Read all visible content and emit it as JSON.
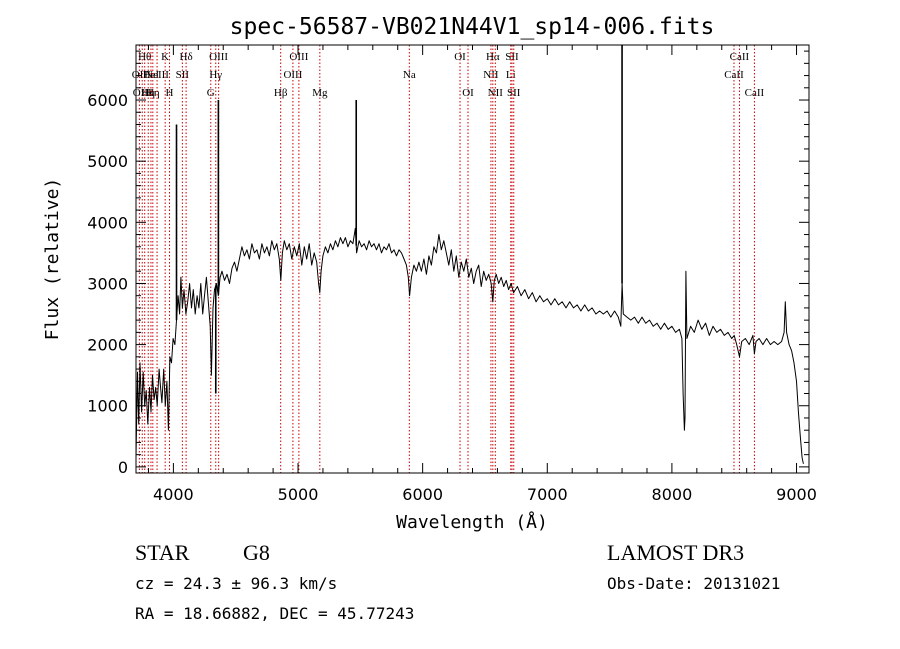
{
  "chart_data": {
    "type": "line",
    "title": "spec-56587-VB021N44V1_sp14-006.fits",
    "xlabel": "Wavelength (Å)",
    "ylabel": "Flux (relative)",
    "xlim": [
      3700,
      9100
    ],
    "ylim": [
      -100,
      6900
    ],
    "xticks": [
      4000,
      5000,
      6000,
      7000,
      8000,
      9000
    ],
    "yticks": [
      0,
      1000,
      2000,
      3000,
      4000,
      5000,
      6000
    ],
    "grid": false,
    "line_color": "#000000",
    "marker_color": "#cc0000",
    "series": [
      {
        "points": [
          [
            3700,
            150
          ],
          [
            3712,
            1550
          ],
          [
            3722,
            700
          ],
          [
            3732,
            1700
          ],
          [
            3745,
            900
          ],
          [
            3758,
            1550
          ],
          [
            3770,
            1000
          ],
          [
            3782,
            1250
          ],
          [
            3795,
            700
          ],
          [
            3808,
            1300
          ],
          [
            3820,
            900
          ],
          [
            3832,
            1500
          ],
          [
            3845,
            1100
          ],
          [
            3858,
            1300
          ],
          [
            3870,
            1000
          ],
          [
            3885,
            1600
          ],
          [
            3895,
            1350
          ],
          [
            3908,
            1050
          ],
          [
            3922,
            1600
          ],
          [
            3935,
            1000
          ],
          [
            3948,
            1400
          ],
          [
            3960,
            600
          ],
          [
            3972,
            1800
          ],
          [
            3985,
            1700
          ],
          [
            3998,
            2100
          ],
          [
            4012,
            2000
          ],
          [
            4025,
            2400
          ],
          [
            4038,
            2800
          ],
          [
            4050,
            2500
          ],
          [
            4060,
            3100
          ],
          [
            4072,
            2600
          ],
          [
            4085,
            2900
          ],
          [
            4100,
            2500
          ],
          [
            4115,
            2700
          ],
          [
            4130,
            3000
          ],
          [
            4145,
            2600
          ],
          [
            4160,
            2900
          ],
          [
            4175,
            2500
          ],
          [
            4190,
            2800
          ],
          [
            4205,
            2600
          ],
          [
            4220,
            3000
          ],
          [
            4235,
            2500
          ],
          [
            4250,
            2800
          ],
          [
            4265,
            3100
          ],
          [
            4280,
            2700
          ],
          [
            4295,
            2300
          ],
          [
            4305,
            1500
          ],
          [
            4318,
            2600
          ],
          [
            4330,
            2900
          ],
          [
            4345,
            3000
          ],
          [
            4360,
            2800
          ],
          [
            4375,
            3100
          ],
          [
            4390,
            3200
          ],
          [
            4410,
            3050
          ],
          [
            4430,
            3150
          ],
          [
            4450,
            3000
          ],
          [
            4470,
            3250
          ],
          [
            4490,
            3350
          ],
          [
            4510,
            3200
          ],
          [
            4530,
            3400
          ],
          [
            4550,
            3600
          ],
          [
            4570,
            3450
          ],
          [
            4590,
            3550
          ],
          [
            4610,
            3400
          ],
          [
            4630,
            3650
          ],
          [
            4650,
            3500
          ],
          [
            4670,
            3550
          ],
          [
            4690,
            3400
          ],
          [
            4710,
            3650
          ],
          [
            4730,
            3500
          ],
          [
            4750,
            3600
          ],
          [
            4770,
            3450
          ],
          [
            4790,
            3700
          ],
          [
            4810,
            3550
          ],
          [
            4830,
            3650
          ],
          [
            4850,
            3400
          ],
          [
            4862,
            3050
          ],
          [
            4875,
            3500
          ],
          [
            4890,
            3700
          ],
          [
            4910,
            3550
          ],
          [
            4930,
            3650
          ],
          [
            4950,
            3400
          ],
          [
            4970,
            3600
          ],
          [
            4990,
            3450
          ],
          [
            5010,
            3650
          ],
          [
            5030,
            3300
          ],
          [
            5050,
            3600
          ],
          [
            5070,
            3400
          ],
          [
            5090,
            3650
          ],
          [
            5110,
            3300
          ],
          [
            5130,
            3500
          ],
          [
            5150,
            3350
          ],
          [
            5165,
            3000
          ],
          [
            5175,
            2850
          ],
          [
            5185,
            3200
          ],
          [
            5200,
            3450
          ],
          [
            5220,
            3600
          ],
          [
            5240,
            3500
          ],
          [
            5260,
            3650
          ],
          [
            5280,
            3550
          ],
          [
            5300,
            3700
          ],
          [
            5320,
            3600
          ],
          [
            5340,
            3750
          ],
          [
            5360,
            3650
          ],
          [
            5380,
            3750
          ],
          [
            5400,
            3600
          ],
          [
            5420,
            3700
          ],
          [
            5440,
            3650
          ],
          [
            5460,
            3900
          ],
          [
            5470,
            3500
          ],
          [
            5490,
            3700
          ],
          [
            5510,
            3600
          ],
          [
            5530,
            3650
          ],
          [
            5550,
            3550
          ],
          [
            5570,
            3700
          ],
          [
            5590,
            3600
          ],
          [
            5610,
            3650
          ],
          [
            5630,
            3550
          ],
          [
            5650,
            3650
          ],
          [
            5670,
            3500
          ],
          [
            5690,
            3600
          ],
          [
            5710,
            3550
          ],
          [
            5730,
            3650
          ],
          [
            5750,
            3500
          ],
          [
            5770,
            3550
          ],
          [
            5790,
            3450
          ],
          [
            5810,
            3550
          ],
          [
            5830,
            3500
          ],
          [
            5850,
            3400
          ],
          [
            5870,
            3300
          ],
          [
            5885,
            3100
          ],
          [
            5895,
            2800
          ],
          [
            5910,
            3100
          ],
          [
            5930,
            3300
          ],
          [
            5950,
            3200
          ],
          [
            5970,
            3350
          ],
          [
            5990,
            3200
          ],
          [
            6010,
            3400
          ],
          [
            6030,
            3150
          ],
          [
            6050,
            3450
          ],
          [
            6070,
            3300
          ],
          [
            6090,
            3600
          ],
          [
            6110,
            3500
          ],
          [
            6130,
            3800
          ],
          [
            6150,
            3550
          ],
          [
            6170,
            3700
          ],
          [
            6190,
            3500
          ],
          [
            6210,
            3300
          ],
          [
            6230,
            3550
          ],
          [
            6250,
            3200
          ],
          [
            6270,
            3450
          ],
          [
            6290,
            3100
          ],
          [
            6310,
            3350
          ],
          [
            6330,
            3200
          ],
          [
            6350,
            3400
          ],
          [
            6370,
            3100
          ],
          [
            6390,
            3250
          ],
          [
            6410,
            3000
          ],
          [
            6430,
            3200
          ],
          [
            6450,
            3300
          ],
          [
            6470,
            2950
          ],
          [
            6490,
            3200
          ],
          [
            6510,
            3050
          ],
          [
            6530,
            3150
          ],
          [
            6550,
            3000
          ],
          [
            6563,
            2700
          ],
          [
            6575,
            3050
          ],
          [
            6590,
            3150
          ],
          [
            6610,
            3000
          ],
          [
            6630,
            3100
          ],
          [
            6650,
            2950
          ],
          [
            6670,
            3050
          ],
          [
            6690,
            2900
          ],
          [
            6710,
            3000
          ],
          [
            6730,
            2850
          ],
          [
            6760,
            2950
          ],
          [
            6790,
            2800
          ],
          [
            6820,
            2900
          ],
          [
            6850,
            2750
          ],
          [
            6880,
            2850
          ],
          [
            6910,
            2700
          ],
          [
            6940,
            2800
          ],
          [
            6970,
            2700
          ],
          [
            7000,
            2750
          ],
          [
            7030,
            2650
          ],
          [
            7060,
            2750
          ],
          [
            7090,
            2650
          ],
          [
            7120,
            2700
          ],
          [
            7150,
            2600
          ],
          [
            7180,
            2700
          ],
          [
            7210,
            2600
          ],
          [
            7240,
            2650
          ],
          [
            7270,
            2550
          ],
          [
            7300,
            2650
          ],
          [
            7330,
            2550
          ],
          [
            7360,
            2600
          ],
          [
            7390,
            2500
          ],
          [
            7420,
            2550
          ],
          [
            7450,
            2500
          ],
          [
            7480,
            2550
          ],
          [
            7510,
            2450
          ],
          [
            7540,
            2550
          ],
          [
            7570,
            2450
          ],
          [
            7590,
            2300
          ],
          [
            7600,
            3000
          ],
          [
            7610,
            2500
          ],
          [
            7640,
            2450
          ],
          [
            7670,
            2400
          ],
          [
            7700,
            2450
          ],
          [
            7730,
            2350
          ],
          [
            7760,
            2450
          ],
          [
            7790,
            2350
          ],
          [
            7820,
            2400
          ],
          [
            7850,
            2300
          ],
          [
            7880,
            2350
          ],
          [
            7910,
            2250
          ],
          [
            7940,
            2350
          ],
          [
            7970,
            2250
          ],
          [
            8000,
            2300
          ],
          [
            8030,
            2200
          ],
          [
            8060,
            2250
          ],
          [
            8080,
            2100
          ],
          [
            8090,
            1200
          ],
          [
            8100,
            600
          ],
          [
            8105,
            800
          ],
          [
            8112,
            3200
          ],
          [
            8120,
            2100
          ],
          [
            8150,
            2300
          ],
          [
            8180,
            2200
          ],
          [
            8210,
            2400
          ],
          [
            8240,
            2250
          ],
          [
            8270,
            2350
          ],
          [
            8300,
            2150
          ],
          [
            8330,
            2300
          ],
          [
            8360,
            2200
          ],
          [
            8390,
            2250
          ],
          [
            8420,
            2150
          ],
          [
            8450,
            2200
          ],
          [
            8480,
            2100
          ],
          [
            8500,
            2150
          ],
          [
            8520,
            2000
          ],
          [
            8542,
            1800
          ],
          [
            8560,
            2050
          ],
          [
            8590,
            2100
          ],
          [
            8620,
            2000
          ],
          [
            8650,
            2150
          ],
          [
            8662,
            1850
          ],
          [
            8675,
            2050
          ],
          [
            8700,
            2100
          ],
          [
            8730,
            2000
          ],
          [
            8760,
            2100
          ],
          [
            8790,
            2000
          ],
          [
            8820,
            2050
          ],
          [
            8850,
            2000
          ],
          [
            8880,
            2050
          ],
          [
            8900,
            2200
          ],
          [
            8910,
            2700
          ],
          [
            8920,
            2200
          ],
          [
            8940,
            2000
          ],
          [
            8960,
            1900
          ],
          [
            8980,
            1700
          ],
          [
            9000,
            1400
          ],
          [
            9015,
            900
          ],
          [
            9030,
            500
          ],
          [
            9045,
            150
          ],
          [
            9055,
            50
          ]
        ],
        "spikes": [
          {
            "x": 4025,
            "y": 5600
          },
          {
            "x": 4340,
            "y": 1200
          },
          {
            "x": 4361,
            "y": 6000
          },
          {
            "x": 5467,
            "y": 6000
          },
          {
            "x": 7600,
            "y": 6900
          }
        ]
      }
    ],
    "line_markers": [
      {
        "x": 3727,
        "label": "OII",
        "row": 1
      },
      {
        "x": 3750,
        "label": "OIII",
        "row": 2
      },
      {
        "x": 3770,
        "label": "Hθ",
        "row": 0
      },
      {
        "x": 3798,
        "label": "Hη",
        "row": 2
      },
      {
        "x": 3820,
        "label": "HeI",
        "row": 1
      },
      {
        "x": 3835,
        "label": "Hη",
        "row": 2
      },
      {
        "x": 3869,
        "label": "NeIII",
        "row": 1
      },
      {
        "x": 3934,
        "label": "K",
        "row": 0
      },
      {
        "x": 3969,
        "label": "H",
        "row": 2
      },
      {
        "x": 4072,
        "label": "SII",
        "row": 1
      },
      {
        "x": 4102,
        "label": "Hδ",
        "row": 0
      },
      {
        "x": 4300,
        "label": "G",
        "row": 2
      },
      {
        "x": 4340,
        "label": "Hγ",
        "row": 1
      },
      {
        "x": 4363,
        "label": "OIII",
        "row": 0
      },
      {
        "x": 4861,
        "label": "Hβ",
        "row": 2
      },
      {
        "x": 4959,
        "label": "OIII",
        "row": 1
      },
      {
        "x": 5007,
        "label": "OIII",
        "row": 0
      },
      {
        "x": 5175,
        "label": "Mg",
        "row": 2
      },
      {
        "x": 5893,
        "label": "Na",
        "row": 1
      },
      {
        "x": 6300,
        "label": "OI",
        "row": 0
      },
      {
        "x": 6364,
        "label": "OI",
        "row": 2
      },
      {
        "x": 6548,
        "label": "NII",
        "row": 1
      },
      {
        "x": 6563,
        "label": "Hα",
        "row": 0
      },
      {
        "x": 6583,
        "label": "NII",
        "row": 2
      },
      {
        "x": 6707,
        "label": "Li",
        "row": 1
      },
      {
        "x": 6717,
        "label": "SII",
        "row": 0
      },
      {
        "x": 6731,
        "label": "SII",
        "row": 2
      },
      {
        "x": 8498,
        "label": "CaII",
        "row": 1
      },
      {
        "x": 8542,
        "label": "CaII",
        "row": 0
      },
      {
        "x": 8662,
        "label": "CaII",
        "row": 2
      }
    ]
  },
  "info": {
    "object_class": "STAR",
    "subclass": "G8",
    "survey": "LAMOST DR3",
    "redshift": "cz = 24.3 ± 96.3 km/s",
    "obs_date": "Obs-Date: 20131021",
    "coords": "RA =  18.66882, DEC =  45.77243"
  }
}
